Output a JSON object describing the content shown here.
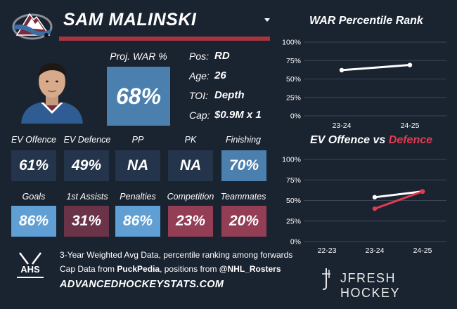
{
  "header": {
    "player_name": "SAM MALINSKI"
  },
  "war_block": {
    "label": "Proj. WAR %",
    "value": "68%"
  },
  "info": [
    {
      "label": "Pos:",
      "value": "RD"
    },
    {
      "label": "Age:",
      "value": "26"
    },
    {
      "label": "TOI:",
      "value": "Depth"
    },
    {
      "label": "Cap:",
      "value": "$0.9M x 1"
    }
  ],
  "stats": [
    {
      "label": "EV Offence",
      "value": "61%",
      "color": "#24344a"
    },
    {
      "label": "EV Defence",
      "value": "49%",
      "color": "#24344a"
    },
    {
      "label": "PP",
      "value": "NA",
      "color": "#24344a"
    },
    {
      "label": "PK",
      "value": "NA",
      "color": "#24344a"
    },
    {
      "label": "Finishing",
      "value": "70%",
      "color": "#4a7fae"
    },
    {
      "label": "Goals",
      "value": "86%",
      "color": "#5f9fd4"
    },
    {
      "label": "1st Assists",
      "value": "31%",
      "color": "#6b3347"
    },
    {
      "label": "Penalties",
      "value": "86%",
      "color": "#5f9fd4"
    },
    {
      "label": "Competition",
      "value": "23%",
      "color": "#933e55"
    },
    {
      "label": "Teammates",
      "value": "20%",
      "color": "#933e55"
    }
  ],
  "footer": {
    "line1": "3-Year Weighted Avg Data, percentile ranking among forwards",
    "line2_prefix": "Cap Data from ",
    "line2_source1": "PuckPedia",
    "line2_middle": ", positions from ",
    "line2_source2": "@NHL_Rosters",
    "line3": "ADVANCEDHOCKEYSTATS.COM",
    "ahs_logo_text": "AHS",
    "brand": "JFRESH HOCKEY"
  },
  "colors": {
    "background": "#1a2330",
    "accent_red": "#a8343f",
    "line_white": "#ffffff",
    "line_red": "#e23b50",
    "grid": "#3a4656"
  },
  "chart_data": [
    {
      "type": "line",
      "title": "WAR Percentile Rank",
      "categories": [
        "23-24",
        "24-25"
      ],
      "yticks": [
        "100%",
        "75%",
        "50%",
        "25%",
        "0%"
      ],
      "ylim": [
        0,
        100
      ],
      "series": [
        {
          "values": [
            62,
            69
          ],
          "color": "#ffffff"
        }
      ]
    },
    {
      "type": "line",
      "title_part1": "EV Offence vs ",
      "title_part2": "Defence",
      "categories": [
        "22-23",
        "23-24",
        "24-25"
      ],
      "yticks": [
        "100%",
        "75%",
        "50%",
        "25%",
        "0%"
      ],
      "ylim": [
        0,
        100
      ],
      "series": [
        {
          "values": [
            null,
            54,
            61
          ],
          "color": "#ffffff"
        },
        {
          "values": [
            null,
            40,
            61
          ],
          "color": "#e23b50"
        }
      ]
    }
  ]
}
